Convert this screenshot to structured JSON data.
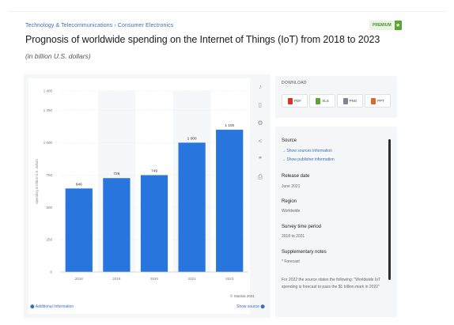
{
  "breadcrumb": "Technology & Telecommunications › Consumer Electronics",
  "premium_label": "PREMIUM",
  "title": "Prognosis of worldwide spending on the Internet of Things (IoT) from 2018 to 2023",
  "subtitle": "(in billion U.S. dollars)",
  "chart_data": {
    "type": "bar",
    "categories": [
      "2018",
      "2019",
      "2020",
      "2021",
      "2023"
    ],
    "values": [
      646,
      726,
      749,
      1000,
      1100
    ],
    "data_labels": [
      "646",
      "726",
      "749",
      "1 000",
      "1 100"
    ],
    "ylabel": "Spending in billion U.S. dollars",
    "ylim": [
      0,
      1400
    ],
    "yticks": [
      0,
      250,
      500,
      750,
      1000,
      1250,
      1400
    ],
    "ytick_labels": [
      "0",
      "250",
      "500",
      "750",
      "1 000",
      "1 250",
      "1 400"
    ],
    "bar_color": "#2876dd",
    "grid": true,
    "legend": "none"
  },
  "toolbar": [
    {
      "icon": "bell-icon",
      "glyph": "♪"
    },
    {
      "icon": "bookmark-icon",
      "glyph": "▯"
    },
    {
      "icon": "settings-icon",
      "glyph": "⚙"
    },
    {
      "icon": "share-icon",
      "glyph": "<"
    },
    {
      "icon": "quote-icon",
      "glyph": "❞"
    },
    {
      "icon": "print-icon",
      "glyph": "⎙"
    }
  ],
  "copyright": "© Statista 2021",
  "additional_info": "Additional Information",
  "show_source": "Show source",
  "download": {
    "title": "DOWNLOAD",
    "buttons": [
      {
        "label": "PDF",
        "color": "#d9322b",
        "icon": "pdf-icon"
      },
      {
        "label": "XLS",
        "color": "#5aa52f",
        "icon": "xls-icon"
      },
      {
        "label": "PNG",
        "color": "#7a8696",
        "icon": "png-icon"
      },
      {
        "label": "PPT",
        "color": "#e0662b",
        "icon": "ppt-icon"
      }
    ]
  },
  "info": {
    "source_label": "Source",
    "source_link1": "→ Show sources information",
    "source_link2": "→ Show publisher information",
    "release_label": "Release date",
    "release_value": "June 2021",
    "region_label": "Region",
    "region_value": "Worldwide",
    "survey_label": "Survey time period",
    "survey_value": "2018 to 2021",
    "supp_label": "Supplementary notes",
    "supp_value": "* Forecast",
    "note": "For 2022 the source states the following: \"Worldwide IoT spending is forecast to pass the $1 trillion mark in 2022\""
  }
}
